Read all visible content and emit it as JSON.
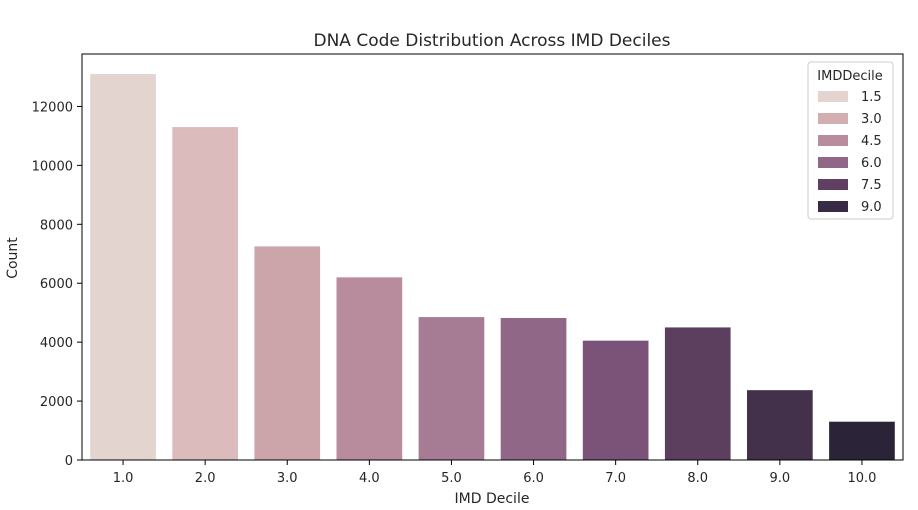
{
  "chart_data": {
    "type": "bar",
    "title": "DNA Code Distribution Across IMD Deciles",
    "xlabel": "IMD Decile",
    "ylabel": "Count",
    "categories": [
      "1.0",
      "2.0",
      "3.0",
      "4.0",
      "5.0",
      "6.0",
      "7.0",
      "8.0",
      "9.0",
      "10.0"
    ],
    "values": [
      13100,
      11300,
      7250,
      6200,
      4850,
      4820,
      4050,
      4500,
      2370,
      1300
    ],
    "bar_colors": [
      "#e3d4cf",
      "#dbbbbc",
      "#cba5aa",
      "#b88c9d",
      "#a67b94",
      "#906787",
      "#7b5278",
      "#5c3f5f",
      "#43304a",
      "#2b2338"
    ],
    "ylim": [
      0,
      13780
    ],
    "yticks": [
      0,
      2000,
      4000,
      6000,
      8000,
      10000,
      12000
    ],
    "grid": false,
    "legend": {
      "title": "IMDDecile",
      "position": "top-right",
      "entries": [
        {
          "label": "1.5",
          "color": "#e3d4cf"
        },
        {
          "label": "3.0",
          "color": "#d2aeb0"
        },
        {
          "label": "4.5",
          "color": "#b88c9d"
        },
        {
          "label": "6.0",
          "color": "#906787"
        },
        {
          "label": "7.5",
          "color": "#613f63"
        },
        {
          "label": "9.0",
          "color": "#362a44"
        }
      ]
    }
  }
}
